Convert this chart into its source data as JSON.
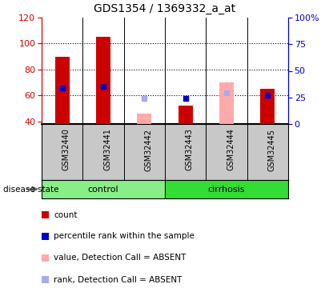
{
  "title": "GDS1354 / 1369332_a_at",
  "samples": [
    "GSM32440",
    "GSM32441",
    "GSM32442",
    "GSM32443",
    "GSM32444",
    "GSM32445"
  ],
  "groups": [
    "control",
    "control",
    "control",
    "cirrhosis",
    "cirrhosis",
    "cirrhosis"
  ],
  "ylim_left": [
    38,
    120
  ],
  "ylim_right": [
    0,
    100
  ],
  "yticks_left": [
    40,
    60,
    80,
    100,
    120
  ],
  "yticks_right": [
    0,
    25,
    50,
    75,
    100
  ],
  "ytick_labels_right": [
    "0",
    "25",
    "50",
    "75",
    "100%"
  ],
  "red_bars": [
    90,
    105,
    null,
    52,
    null,
    65
  ],
  "blue_squares": [
    66,
    67,
    null,
    58,
    null,
    60
  ],
  "pink_bars": [
    null,
    null,
    46,
    null,
    70,
    null
  ],
  "lightblue_squares": [
    null,
    null,
    58,
    null,
    62,
    null
  ],
  "bar_width": 0.35,
  "red_color": "#cc0000",
  "blue_color": "#0000cc",
  "pink_color": "#ffaaaa",
  "lightblue_color": "#aaaaee",
  "control_color": "#88ee88",
  "cirrhosis_color": "#33dd33",
  "sample_bg_color": "#c8c8c8",
  "dotted_lines": [
    60,
    80,
    100
  ],
  "group_label": "disease state",
  "legend_items": [
    {
      "color": "#cc0000",
      "label": "count"
    },
    {
      "color": "#0000cc",
      "label": "percentile rank within the sample"
    },
    {
      "color": "#ffaaaa",
      "label": "value, Detection Call = ABSENT"
    },
    {
      "color": "#aaaaee",
      "label": "rank, Detection Call = ABSENT"
    }
  ]
}
